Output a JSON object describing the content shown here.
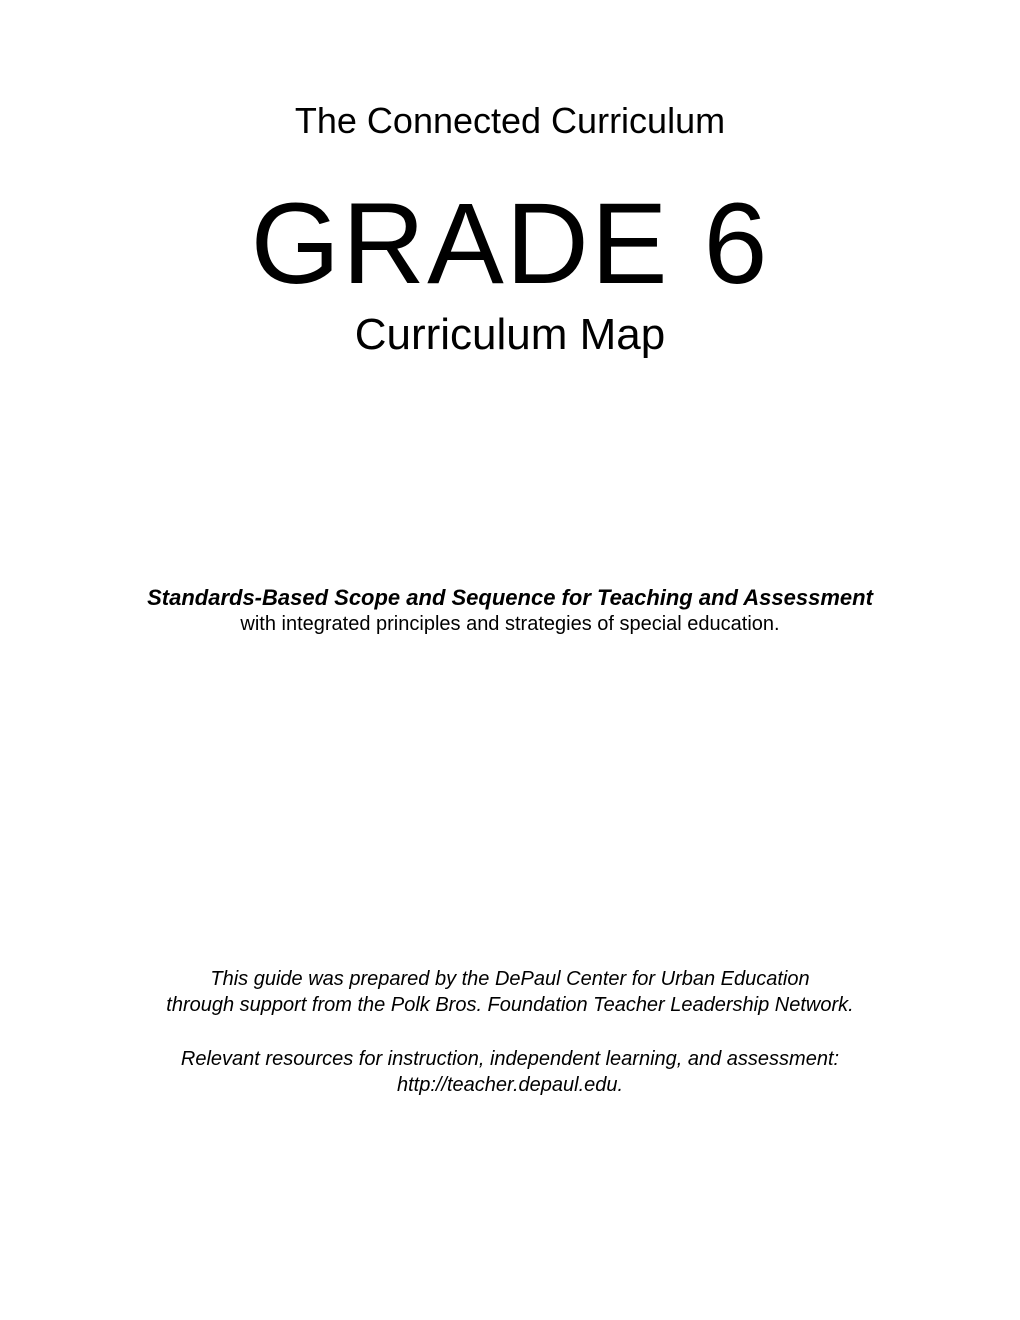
{
  "header": {
    "title": "The Connected Curriculum"
  },
  "main": {
    "grade": "GRADE 6",
    "subtitle": "Curriculum Map"
  },
  "description": {
    "main": "Standards-Based Scope and Sequence for Teaching and Assessment",
    "sub": "with integrated principles and strategies of special education."
  },
  "footer": {
    "line1": "This guide was prepared by the DePaul Center for Urban Education",
    "line2": "through support from the Polk Bros. Foundation Teacher Leadership Network.",
    "line3": "Relevant resources for instruction, independent learning, and assessment:",
    "line4": "http://teacher.depaul.edu."
  }
}
